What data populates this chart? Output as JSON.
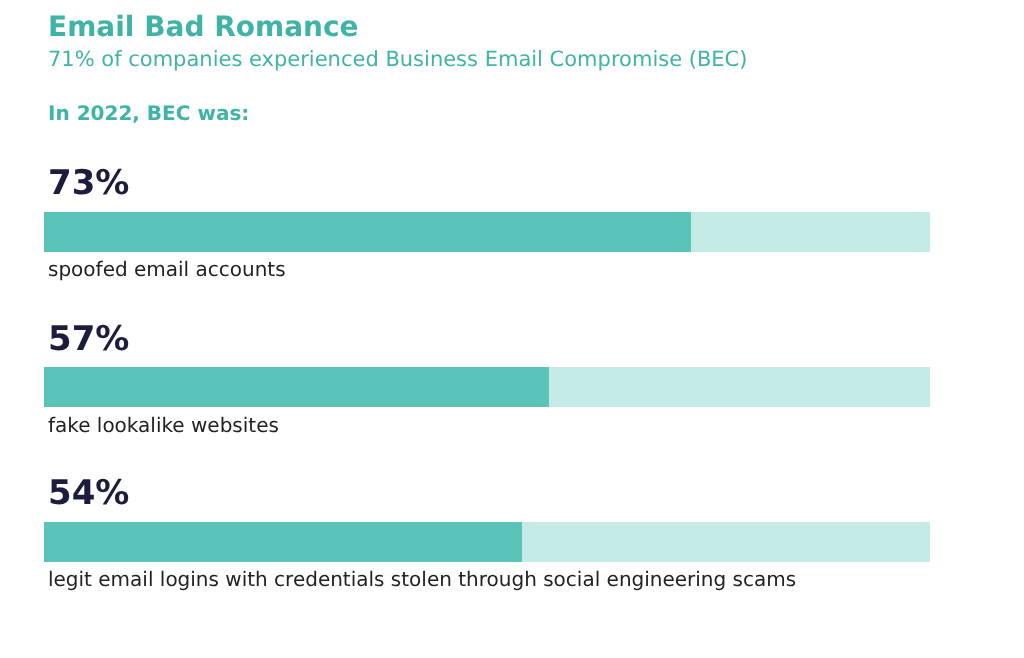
{
  "chart_data": {
    "type": "bar",
    "orientation": "horizontal",
    "stacked": true,
    "title": "Email Bad Romance",
    "subtitle": "71% of companies experienced Business Email Compromise (BEC)",
    "annotations": [
      "In 2022, BEC was:"
    ],
    "categories": [
      "spoofed email accounts",
      "fake lookalike websites",
      "legit email logins with credentials stolen through social engineering scams"
    ],
    "series": [
      {
        "color": "#5bc4b8",
        "values": [
          73,
          57,
          54
        ],
        "value_labels": [
          "73%",
          "57%",
          "54%"
        ]
      },
      {
        "color": "#c5ebe6",
        "values": [
          27,
          43,
          46
        ]
      }
    ],
    "xlim": [
      0,
      100
    ],
    "tick_labels": false
  }
}
